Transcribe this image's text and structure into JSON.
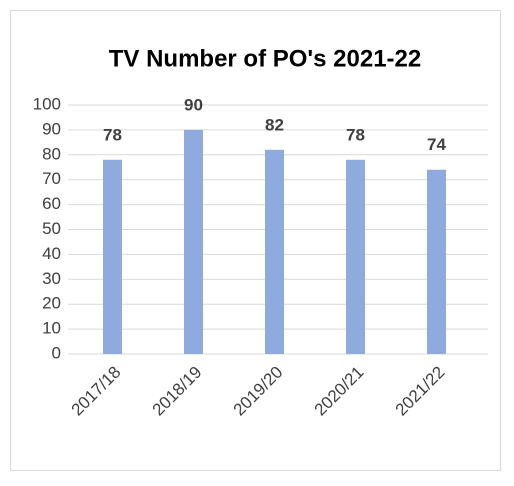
{
  "chart_data": {
    "type": "bar",
    "title": "TV Number of PO's 2021-22",
    "categories": [
      "2017/18",
      "2018/19",
      "2019/20",
      "2020/21",
      "2021/22"
    ],
    "values": [
      78,
      90,
      82,
      78,
      74
    ],
    "color": "#8faadc",
    "ylim": [
      0,
      100
    ],
    "yticks": [
      0,
      10,
      20,
      30,
      40,
      50,
      60,
      70,
      80,
      90,
      100
    ],
    "grid": true
  }
}
